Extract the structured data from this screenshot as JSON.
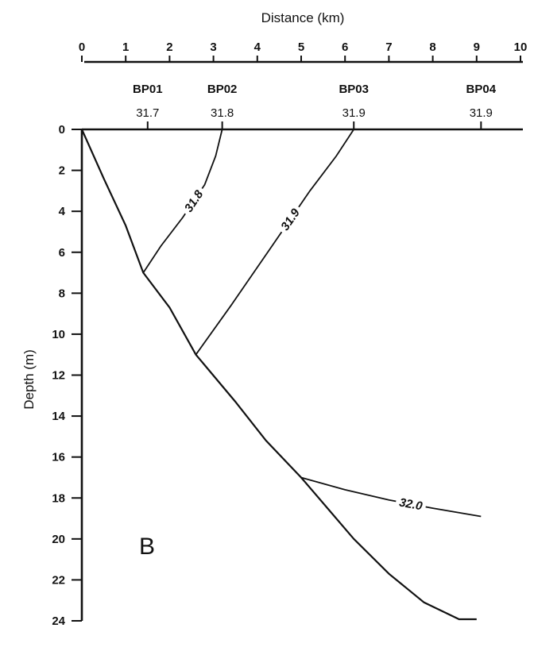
{
  "chart_data": {
    "type": "line",
    "panel_label": "B",
    "xlabel": "Distance (km)",
    "ylabel": "Depth (m)",
    "x_axis_position": "top",
    "xlim": [
      0,
      10
    ],
    "ylim": [
      0,
      24
    ],
    "x_ticks": [
      "0",
      "1",
      "2",
      "3",
      "4",
      "5",
      "6",
      "7",
      "8",
      "9",
      "10"
    ],
    "y_ticks": [
      "0",
      "2",
      "4",
      "6",
      "8",
      "10",
      "12",
      "14",
      "16",
      "18",
      "20",
      "22",
      "24"
    ],
    "grid": false,
    "stations": [
      {
        "name": "BP01",
        "value": "31.7",
        "x": 1.5
      },
      {
        "name": "BP02",
        "value": "31.8",
        "x": 3.2
      },
      {
        "name": "BP03",
        "value": "31.9",
        "x": 6.2
      },
      {
        "name": "BP04",
        "value": "31.9",
        "x": 9.1
      }
    ],
    "bottom_profile": {
      "x": [
        0.0,
        0.5,
        1.0,
        1.4,
        2.0,
        2.6,
        3.5,
        4.2,
        5.0,
        5.6,
        6.2,
        7.0,
        7.8,
        8.6,
        9.0
      ],
      "y": [
        0.0,
        2.4,
        4.7,
        7.0,
        8.7,
        11.0,
        13.3,
        15.2,
        17.0,
        18.5,
        20.0,
        21.7,
        23.1,
        24.3,
        24.8
      ]
    },
    "contours": [
      {
        "label": "31.8",
        "x": [
          1.4,
          1.8,
          2.3,
          2.8,
          3.05,
          3.2
        ],
        "y": [
          7.0,
          5.7,
          4.3,
          2.7,
          1.3,
          0.0
        ]
      },
      {
        "label": "31.9",
        "x": [
          2.6,
          3.4,
          4.3,
          5.2,
          5.8,
          6.2
        ],
        "y": [
          11.0,
          8.6,
          5.8,
          3.0,
          1.3,
          0.0
        ]
      },
      {
        "label": "32.0",
        "x": [
          5.0,
          6.0,
          7.0,
          8.0,
          9.1
        ],
        "y": [
          17.0,
          17.6,
          18.1,
          18.5,
          18.9
        ]
      }
    ]
  }
}
